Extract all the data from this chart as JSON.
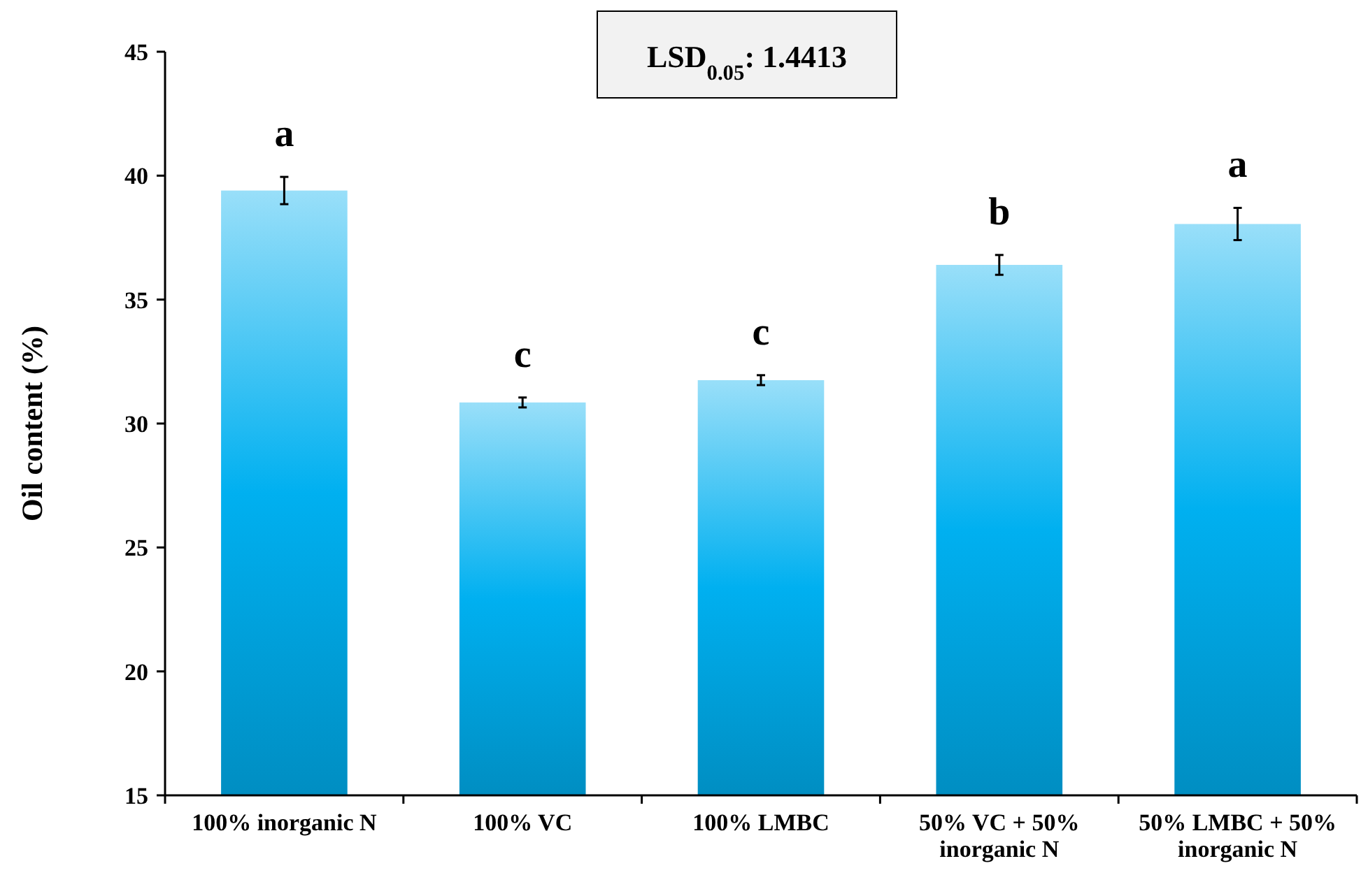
{
  "chart_data": {
    "type": "bar",
    "ylabel": "Oil content (%)",
    "categories": [
      "100% inorganic N",
      "100% VC",
      "100% LMBC",
      "50% VC + 50% inorganic N",
      "50% LMBC + 50% inorganic N"
    ],
    "values": [
      39.4,
      30.85,
      31.75,
      36.4,
      38.05
    ],
    "errors": [
      0.55,
      0.2,
      0.2,
      0.4,
      0.65
    ],
    "color": "#00b0f0",
    "ylim": [
      15,
      45
    ],
    "yticks": [
      15,
      20,
      25,
      30,
      35,
      40,
      45
    ],
    "grid": false,
    "annotations": [
      "LSD$_{0.05}$: 1.4413",
      {
        "text": "a",
        "x": "100% inorganic N",
        "y": 39.95
      },
      {
        "text": "c",
        "x": "100% VC",
        "y": 31.05
      },
      {
        "text": "c",
        "x": "100% LMBC",
        "y": 31.95
      },
      {
        "text": "b",
        "x": "50% VC + 50% inorganic N",
        "y": 36.8
      },
      {
        "text": "a",
        "x": "50% LMBC + 50% inorganic N",
        "y": 38.7
      }
    ]
  }
}
